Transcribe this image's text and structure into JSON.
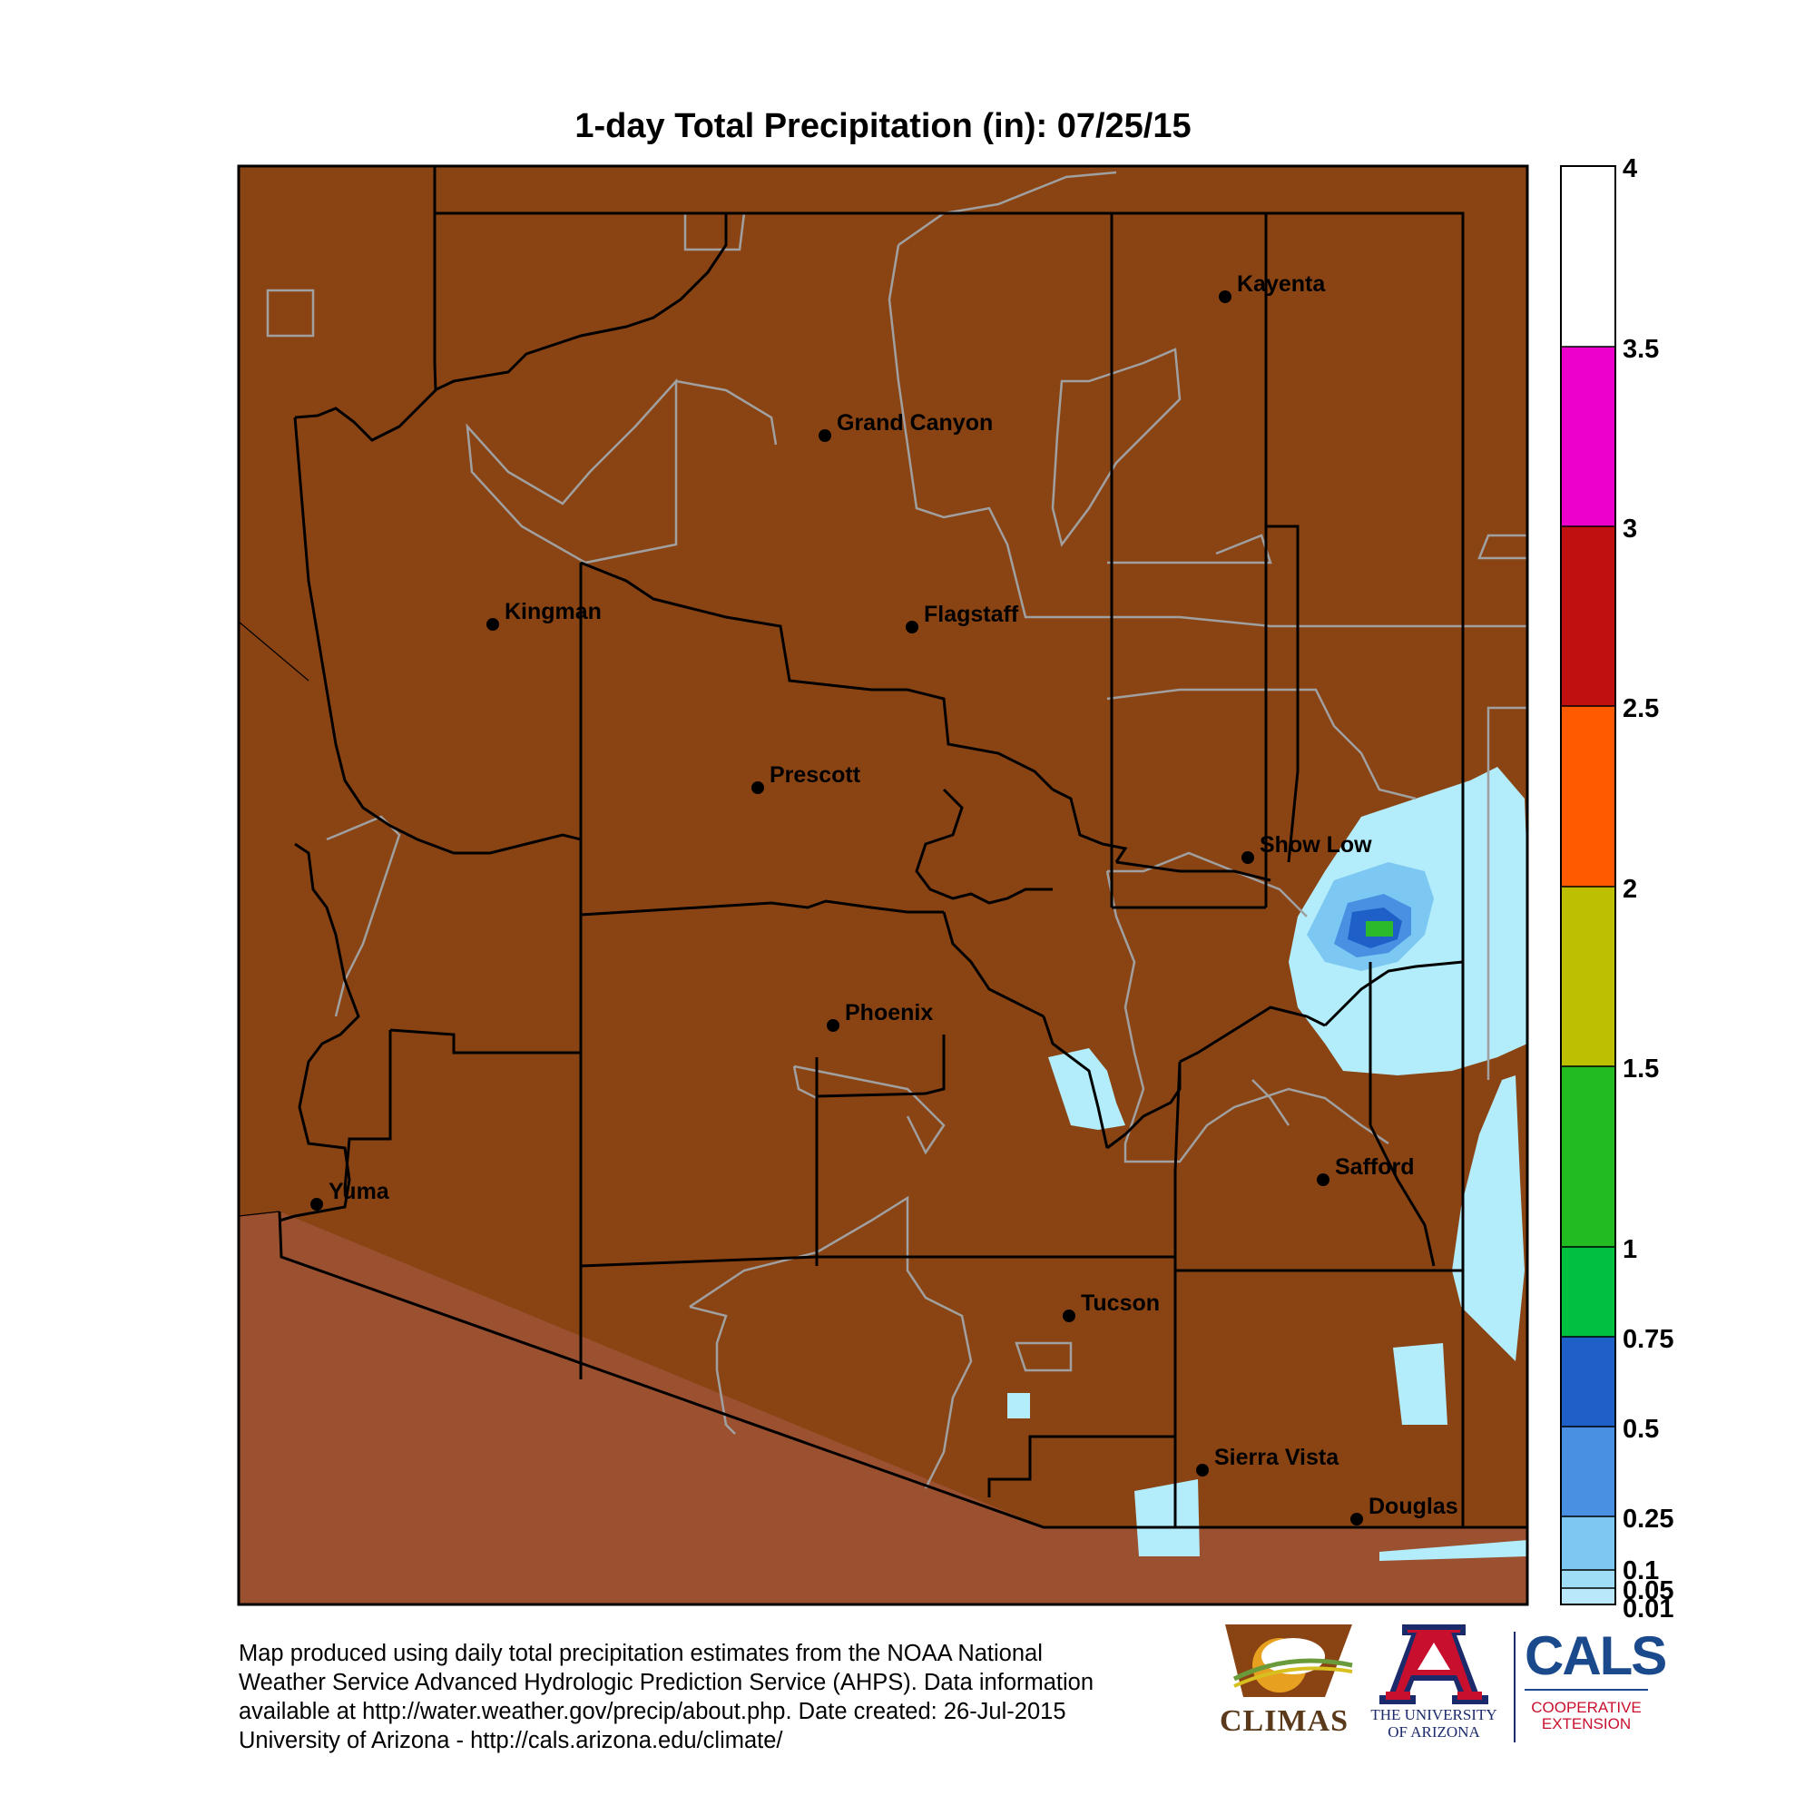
{
  "title": "1-day Total Precipitation (in): 07/25/15",
  "colors": {
    "land": "#8a4414",
    "outside": "#9b5030",
    "county_border": "#000000",
    "tribal_border": "#a0a0a0",
    "precip_light": "#b3ecfb",
    "precip_025": "#7cc8f2",
    "precip_05": "#4a90e2",
    "precip_075": "#1f5fc8",
    "precip_1": "#00c040",
    "precip_15": "#2aba2a"
  },
  "cities": [
    {
      "name": "Kayenta"
    },
    {
      "name": "Grand Canyon"
    },
    {
      "name": "Kingman"
    },
    {
      "name": "Flagstaff"
    },
    {
      "name": "Prescott"
    },
    {
      "name": "Show Low"
    },
    {
      "name": "Phoenix"
    },
    {
      "name": "Safford"
    },
    {
      "name": "Yuma"
    },
    {
      "name": "Tucson"
    },
    {
      "name": "Sierra Vista"
    },
    {
      "name": "Douglas"
    }
  ],
  "colorbar": {
    "ticks": [
      "4",
      "3.5",
      "3",
      "2.5",
      "2",
      "1.5",
      "1",
      "0.75",
      "0.5",
      "0.25",
      "0.1",
      "0.05",
      "0.01"
    ],
    "colors": [
      "#ffffff",
      "#ee00cc",
      "#c01010",
      "#ff5a00",
      "#bcc000",
      "#22bb22",
      "#00c040",
      "#1f5fc8",
      "#4a90e2",
      "#7cc8f2",
      "#9fdcf6",
      "#b8e8fa"
    ]
  },
  "footer": {
    "line1": "Map produced using daily total precipitation estimates from the NOAA National",
    "line2": "Weather Service Advanced Hydrologic Prediction Service (AHPS). Data information",
    "line3": "available at http://water.weather.gov/precip/about.php. Date created: 26-Jul-2015",
    "line4": "University of Arizona - http://cals.arizona.edu/climate/"
  },
  "logos": {
    "climas": "CLIMAS",
    "ua_line1": "THE UNIVERSITY",
    "ua_line2": "OF ARIZONA",
    "cals": "CALS",
    "cals_sub1": "COOPERATIVE",
    "cals_sub2": "EXTENSION"
  }
}
